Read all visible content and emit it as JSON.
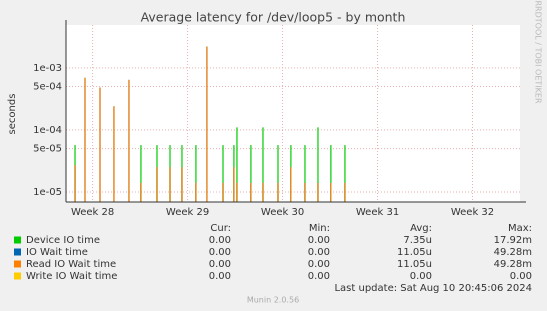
{
  "chart_data": {
    "type": "spike",
    "title": "Average latency for /dev/loop5 - by month",
    "y_label": "seconds",
    "side_label": "RRDTOOL / TOBI OETIKER",
    "log_y": true,
    "grid": true,
    "xlim": [
      27.72,
      32.5
    ],
    "xticks": [
      {
        "value": 28,
        "label": "Week 28"
      },
      {
        "value": 29,
        "label": "Week 29"
      },
      {
        "value": 30,
        "label": "Week 30"
      },
      {
        "value": 31,
        "label": "Week 31"
      },
      {
        "value": 32,
        "label": "Week 32"
      }
    ],
    "ylim": [
      6.9e-06,
      0.0049
    ],
    "yticks": [
      {
        "value": 0.001,
        "label": "1e-03"
      },
      {
        "value": 0.0005,
        "label": "5e-04"
      },
      {
        "value": 0.0001,
        "label": "1e-04"
      },
      {
        "value": 5e-05,
        "label": "5e-05"
      },
      {
        "value": 1e-05,
        "label": "1e-05"
      }
    ],
    "x": [
      27.815,
      27.92,
      28.078,
      28.225,
      28.383,
      28.509,
      28.678,
      28.815,
      28.941,
      29.088,
      29.204,
      29.373,
      29.488,
      29.52,
      29.667,
      29.794,
      29.952,
      30.088,
      30.236,
      30.373,
      30.509,
      30.657
    ],
    "series": [
      {
        "name": "Device IO time",
        "color": "#00cc00",
        "values": [
          5.7e-05,
          null,
          null,
          null,
          null,
          5.7e-05,
          5.7e-05,
          5.7e-05,
          5.7e-05,
          5.7e-05,
          null,
          5.7e-05,
          5.7e-05,
          0.00011,
          5.7e-05,
          0.00011,
          5.7e-05,
          5.7e-05,
          5.7e-05,
          0.00011,
          5.7e-05,
          5.7e-05
        ]
      },
      {
        "name": "IO Wait time",
        "color": "#0066b3",
        "values": [
          2.7e-05,
          0.00069,
          0.00048,
          0.00024,
          0.00064,
          1.4e-05,
          2.5e-05,
          2.5e-05,
          2.5e-05,
          1.4e-05,
          0.0022,
          1.4e-05,
          2.5e-05,
          1.4e-05,
          1.4e-05,
          1.4e-05,
          1.4e-05,
          2.5e-05,
          1.4e-05,
          1.4e-05,
          1.4e-05,
          1.4e-05
        ]
      },
      {
        "name": "Read IO Wait time",
        "color": "#ff8000",
        "values": [
          2.7e-05,
          0.00069,
          0.00048,
          0.00024,
          0.00064,
          1.4e-05,
          2.5e-05,
          2.5e-05,
          2.5e-05,
          1.4e-05,
          0.0022,
          1.4e-05,
          2.5e-05,
          1.4e-05,
          1.4e-05,
          1.4e-05,
          1.4e-05,
          2.5e-05,
          1.4e-05,
          1.4e-05,
          1.4e-05,
          1.4e-05
        ]
      },
      {
        "name": "Write IO Wait time",
        "color": "#ffcc00",
        "values": [
          null,
          null,
          null,
          null,
          null,
          null,
          null,
          null,
          null,
          null,
          null,
          null,
          null,
          null,
          null,
          null,
          null,
          null,
          null,
          null,
          null,
          null
        ]
      }
    ],
    "legend_table": {
      "headers": [
        "Cur:",
        "Min:",
        "Avg:",
        "Max:"
      ],
      "rows": [
        [
          "0.00",
          "0.00",
          "7.35u",
          "17.92m"
        ],
        [
          "0.00",
          "0.00",
          "11.05u",
          "49.28m"
        ],
        [
          "0.00",
          "0.00",
          "11.05u",
          "49.28m"
        ],
        [
          "0.00",
          "0.00",
          "0.00",
          "0.00"
        ]
      ]
    },
    "last_update": "Last update: Sat Aug 10 20:45:06 2024",
    "footer": "Munin 2.0.56"
  }
}
